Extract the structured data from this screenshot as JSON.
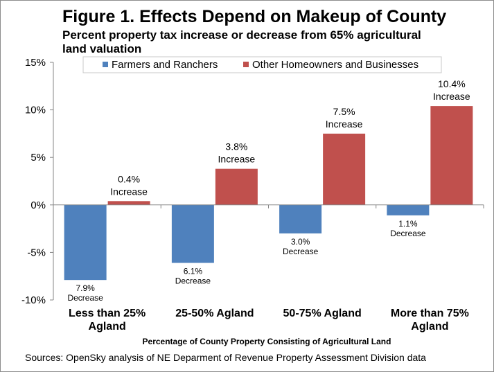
{
  "chart_data": {
    "type": "bar",
    "title": "Figure 1. Effects Depend on Makeup of County",
    "subtitle": "Percent property tax increase or decrease from 65% agricultural land valuation",
    "xlabel": "Percentage of County  Property Consisting  of Agricultural Land",
    "ylabel": "",
    "ylim": [
      -10,
      15
    ],
    "yticks": [
      {
        "value": 15,
        "label": "15%"
      },
      {
        "value": 10,
        "label": "10%"
      },
      {
        "value": 5,
        "label": "5%"
      },
      {
        "value": 0,
        "label": "0%"
      },
      {
        "value": -5,
        "label": "-5%"
      },
      {
        "value": -10,
        "label": "-10%"
      }
    ],
    "categories": [
      [
        "Less than 25%",
        "Agland"
      ],
      [
        "25-50% Agland"
      ],
      [
        "50-75% Agland"
      ],
      [
        "More than 75%",
        "Agland"
      ]
    ],
    "series": [
      {
        "name": "Farmers and Ranchers",
        "color": "#4f81bd",
        "values": [
          -7.9,
          -6.1,
          -3.0,
          -1.1
        ],
        "labels": [
          [
            "7.9%",
            "Decrease"
          ],
          [
            "6.1%",
            "Decrease"
          ],
          [
            "3.0%",
            "Decrease"
          ],
          [
            "1.1%",
            "Decrease"
          ]
        ]
      },
      {
        "name": "Other Homeowners and Businesses",
        "color": "#c0504d",
        "values": [
          0.4,
          3.8,
          7.5,
          10.4
        ],
        "labels": [
          [
            "0.4%",
            "Increase"
          ],
          [
            "3.8%",
            "Increase"
          ],
          [
            "7.5%",
            "Increase"
          ],
          [
            "10.4%",
            "Increase"
          ]
        ]
      }
    ],
    "legend_position": "top",
    "grid": false
  },
  "source": "Sources: OpenSky analysis of NE Deparment of Revenue Property Assessment Division data"
}
